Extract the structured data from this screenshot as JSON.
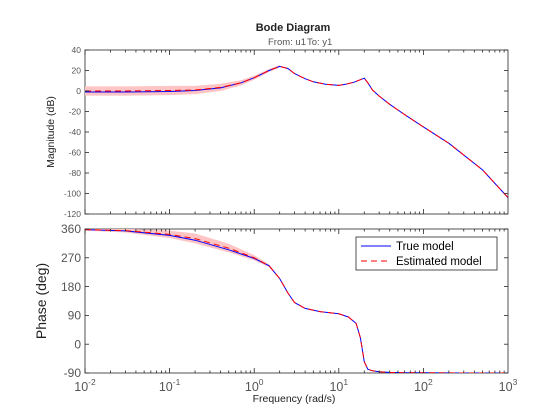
{
  "chart_data": {
    "type": "line",
    "title": "Bode Diagram",
    "subtitle_from": "From: u1",
    "subtitle_to": "To: y1",
    "xlabel": "Frequency  (rad/s)",
    "xscale": "log",
    "xlim": [
      0.01,
      1000
    ],
    "x_ticks": [
      0.01,
      0.1,
      1,
      10,
      100,
      1000
    ],
    "x_tick_labels": [
      {
        "base": "10",
        "exp": "-2"
      },
      {
        "base": "10",
        "exp": "-1"
      },
      {
        "base": "10",
        "exp": "0"
      },
      {
        "base": "10",
        "exp": "1"
      },
      {
        "base": "10",
        "exp": "2"
      },
      {
        "base": "10",
        "exp": "3"
      }
    ],
    "grid": false,
    "legend_placement": "top-right (phase panel)",
    "colors": {
      "true_model": "#0000ff",
      "estimated_model": "#ff0000",
      "confidence_band": "#ffc4c4",
      "axes": "#262626"
    },
    "panels": [
      {
        "name": "magnitude",
        "ylabel": "Magnitude (dB)",
        "ylim": [
          -120,
          40
        ],
        "y_ticks": [
          40,
          20,
          0,
          -20,
          -40,
          -60,
          -80,
          -100,
          -120
        ],
        "y_tick_labels": [
          "40",
          "20",
          "0",
          "-20",
          "-40",
          "-60",
          "-80",
          "-100",
          "-120"
        ],
        "series": [
          {
            "name": "True model",
            "style": "solid",
            "x": [
              0.01,
              0.03,
              0.1,
              0.2,
              0.4,
              0.7,
              1,
              1.5,
              2,
              2.5,
              3,
              4,
              5,
              7,
              10,
              12,
              15,
              18,
              20,
              22,
              25,
              30,
              40,
              60,
              100,
              200,
              500,
              1000
            ],
            "y": [
              -1,
              -1,
              -0.5,
              0.5,
              3,
              8,
              13,
              20,
              24,
              22,
              17,
              12,
              9,
              6.5,
              5.5,
              6.5,
              8.5,
              11,
              12.5,
              8,
              1,
              -5,
              -13,
              -23,
              -35,
              -51,
              -77,
              -104
            ]
          },
          {
            "name": "Estimated model",
            "style": "dashed",
            "x": [
              0.01,
              0.03,
              0.1,
              0.2,
              0.4,
              0.7,
              1,
              1.5,
              2,
              2.5,
              3,
              4,
              5,
              7,
              10,
              12,
              15,
              18,
              20,
              22,
              25,
              30,
              40,
              60,
              100,
              200,
              500,
              1000
            ],
            "y": [
              0,
              0,
              0.5,
              1,
              3.5,
              8,
              13,
              20,
              24,
              22,
              17,
              12,
              9,
              6.5,
              5.5,
              6.5,
              8.5,
              11,
              12.5,
              8,
              1,
              -5,
              -13,
              -23,
              -35,
              -51,
              -77,
              -104
            ]
          }
        ],
        "band": {
          "x": [
            0.01,
            0.03,
            0.1,
            0.2,
            0.4,
            0.7,
            1,
            1.5,
            2
          ],
          "lower": [
            -4.5,
            -4.5,
            -4,
            -3,
            0,
            5.5,
            11,
            18.5,
            23
          ],
          "upper": [
            4.5,
            4.5,
            5,
            5,
            7,
            10.5,
            15,
            21.5,
            25.5
          ]
        }
      },
      {
        "name": "phase",
        "ylabel": "Phase (deg)",
        "ylim": [
          -90,
          360
        ],
        "y_ticks": [
          360,
          270,
          180,
          90,
          0,
          -90
        ],
        "y_tick_labels": [
          "360",
          "270",
          "180",
          "90",
          "0",
          "-90"
        ],
        "series": [
          {
            "name": "True model",
            "style": "solid",
            "x": [
              0.01,
              0.03,
              0.1,
              0.2,
              0.5,
              1,
              1.5,
              2,
              2.5,
              3,
              4,
              6,
              10,
              13,
              16,
              18,
              20,
              22,
              25,
              30,
              40,
              60,
              100,
              300,
              1000
            ],
            "y": [
              358,
              354,
              340,
              325,
              295,
              268,
              245,
              205,
              160,
              130,
              112,
              102,
              95,
              85,
              65,
              20,
              -55,
              -78,
              -83,
              -86,
              -88,
              -89,
              -89.5,
              -90,
              -90
            ]
          },
          {
            "name": "Estimated model",
            "style": "dashed",
            "x": [
              0.01,
              0.03,
              0.1,
              0.2,
              0.5,
              1,
              1.5,
              2,
              2.5,
              3,
              4,
              6,
              10,
              13,
              16,
              18,
              20,
              22,
              25,
              30,
              40,
              60,
              100,
              300,
              1000
            ],
            "y": [
              358,
              355,
              343,
              330,
              300,
              270,
              245,
              205,
              160,
              130,
              112,
              102,
              95,
              85,
              65,
              20,
              -55,
              -78,
              -83,
              -86,
              -88,
              -89,
              -89.5,
              -90,
              -90
            ]
          }
        ],
        "band": {
          "x": [
            0.01,
            0.03,
            0.1,
            0.2,
            0.5,
            1,
            1.5,
            2
          ],
          "lower": [
            355,
            349,
            332,
            315,
            287,
            262,
            241,
            203
          ],
          "upper": [
            361,
            361,
            355,
            346,
            314,
            278,
            250,
            207
          ]
        }
      }
    ],
    "legend": [
      "True model",
      "Estimated model"
    ]
  }
}
